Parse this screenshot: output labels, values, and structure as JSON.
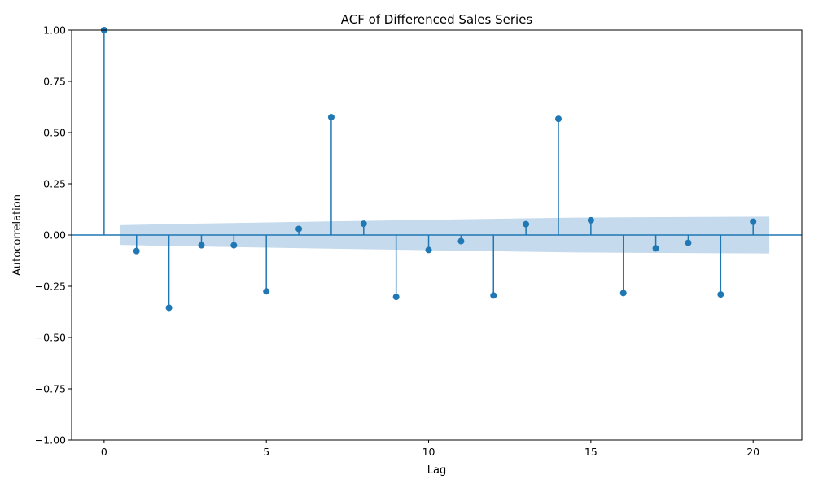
{
  "chart_data": {
    "type": "stem",
    "title": "ACF of Differenced Sales Series",
    "xlabel": "Lag",
    "ylabel": "Autocorrelation",
    "xlim": [
      -1,
      21.5
    ],
    "ylim": [
      -1.0,
      1.0
    ],
    "x_ticks": [
      0,
      5,
      10,
      15,
      20
    ],
    "x_tick_labels": [
      "0",
      "5",
      "10",
      "15",
      "20"
    ],
    "y_ticks": [
      -1.0,
      -0.75,
      -0.5,
      -0.25,
      0.0,
      0.25,
      0.5,
      0.75,
      1.0
    ],
    "y_tick_labels": [
      "−1.00",
      "−0.75",
      "−0.50",
      "−0.25",
      "0.00",
      "0.25",
      "0.50",
      "0.75",
      "1.00"
    ],
    "series": [
      {
        "name": "ACF",
        "lags": [
          0,
          1,
          2,
          3,
          4,
          5,
          6,
          7,
          8,
          9,
          10,
          11,
          12,
          13,
          14,
          15,
          16,
          17,
          18,
          19,
          20
        ],
        "values": [
          1.0,
          -0.078,
          -0.355,
          -0.05,
          -0.05,
          -0.275,
          0.03,
          0.575,
          0.055,
          -0.302,
          -0.073,
          -0.03,
          -0.295,
          0.053,
          0.567,
          0.072,
          -0.283,
          -0.065,
          -0.038,
          -0.29,
          0.065
        ]
      }
    ],
    "confidence_band": {
      "x": [
        0.5,
        2.5,
        7.5,
        14.5,
        20.5
      ],
      "upper": [
        0.048,
        0.055,
        0.068,
        0.085,
        0.09
      ]
    },
    "colors": {
      "stem": "#1f77b4",
      "band": "#c5daec"
    }
  }
}
